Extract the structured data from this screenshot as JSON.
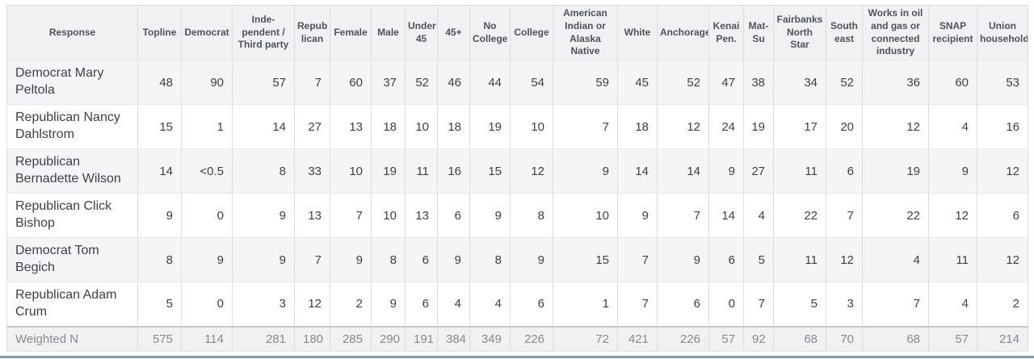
{
  "chart_data": {
    "type": "table",
    "columns": [
      "Response",
      "Topline",
      "Democrat",
      "Inde-\npendent /\nThird party",
      "Repub\nlican",
      "Female",
      "Male",
      "Under\n45",
      "45+",
      "No\nCollege",
      "College",
      "American\nIndian or\nAlaska\nNative",
      "White",
      "Anchorage",
      "Kenai\nPen.",
      "Mat-\nSu",
      "Fairbanks\nNorth\nStar",
      "South\neast",
      "Works in oil\nand gas or\nconnected\nindustry",
      "SNAP\nrecipient",
      "Union\nhousehold"
    ],
    "rows": [
      {
        "label": "Democrat Mary Peltola",
        "values": [
          "48",
          "90",
          "57",
          "7",
          "60",
          "37",
          "52",
          "46",
          "44",
          "54",
          "59",
          "45",
          "52",
          "47",
          "38",
          "34",
          "52",
          "36",
          "60",
          "53"
        ]
      },
      {
        "label": "Republican Nancy Dahlstrom",
        "values": [
          "15",
          "1",
          "14",
          "27",
          "13",
          "18",
          "10",
          "18",
          "19",
          "10",
          "7",
          "18",
          "12",
          "24",
          "19",
          "17",
          "20",
          "12",
          "4",
          "16"
        ]
      },
      {
        "label": "Republican Bernadette Wilson",
        "values": [
          "14",
          "<0.5",
          "8",
          "33",
          "10",
          "19",
          "11",
          "16",
          "15",
          "12",
          "9",
          "14",
          "14",
          "9",
          "27",
          "11",
          "6",
          "19",
          "9",
          "12"
        ]
      },
      {
        "label": "Republican Click Bishop",
        "values": [
          "9",
          "0",
          "9",
          "13",
          "7",
          "10",
          "13",
          "6",
          "9",
          "8",
          "10",
          "9",
          "7",
          "14",
          "4",
          "22",
          "7",
          "22",
          "12",
          "6"
        ]
      },
      {
        "label": "Democrat Tom Begich",
        "values": [
          "8",
          "9",
          "9",
          "7",
          "9",
          "8",
          "6",
          "9",
          "8",
          "9",
          "15",
          "7",
          "9",
          "6",
          "5",
          "11",
          "12",
          "4",
          "11",
          "12"
        ]
      },
      {
        "label": "Republican Adam Crum",
        "values": [
          "5",
          "0",
          "3",
          "12",
          "2",
          "9",
          "6",
          "4",
          "4",
          "6",
          "1",
          "7",
          "6",
          "0",
          "7",
          "5",
          "3",
          "7",
          "4",
          "2"
        ]
      }
    ],
    "footer": {
      "label": "Weighted N",
      "values": [
        "575",
        "114",
        "281",
        "180",
        "285",
        "290",
        "191",
        "384",
        "349",
        "226",
        "72",
        "421",
        "226",
        "57",
        "92",
        "68",
        "70",
        "68",
        "57",
        "214"
      ]
    }
  },
  "colors": {
    "accent_bottom_bar": "#8b9aa7",
    "header_bg": "#f1f1f3",
    "stripe_bg": "#f5f5f7"
  }
}
